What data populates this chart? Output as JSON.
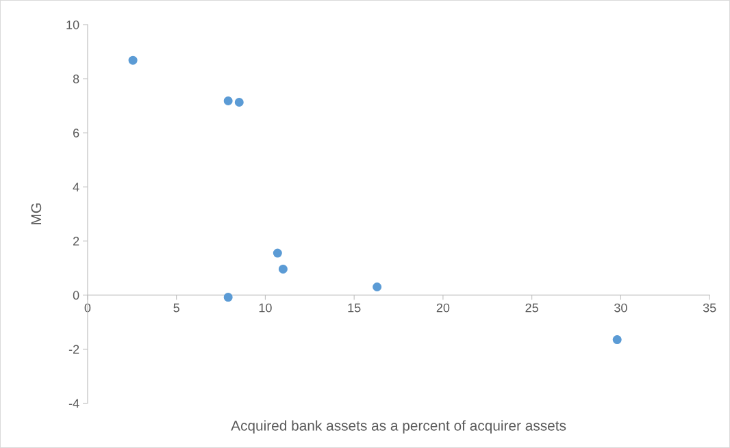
{
  "chart_data": {
    "type": "scatter",
    "xlabel": "Acquired bank assets as a percent of acquirer assets",
    "ylabel": "MG",
    "x": [
      2.55,
      7.91,
      8.53,
      10.69,
      11.0,
      7.91,
      16.29,
      29.8
    ],
    "series": [
      {
        "color": "#5b9bd5",
        "values": [
          8.68,
          7.18,
          7.13,
          1.55,
          0.96,
          -0.08,
          0.3,
          -1.65
        ]
      }
    ],
    "xlim": [
      0,
      35
    ],
    "xticks": [
      0,
      5,
      10,
      15,
      20,
      25,
      30,
      35
    ],
    "ylim": [
      -4,
      10
    ],
    "yticks": [
      -4,
      -2,
      0,
      2,
      4,
      6,
      8,
      10
    ],
    "grid": false,
    "marker": "circle"
  }
}
